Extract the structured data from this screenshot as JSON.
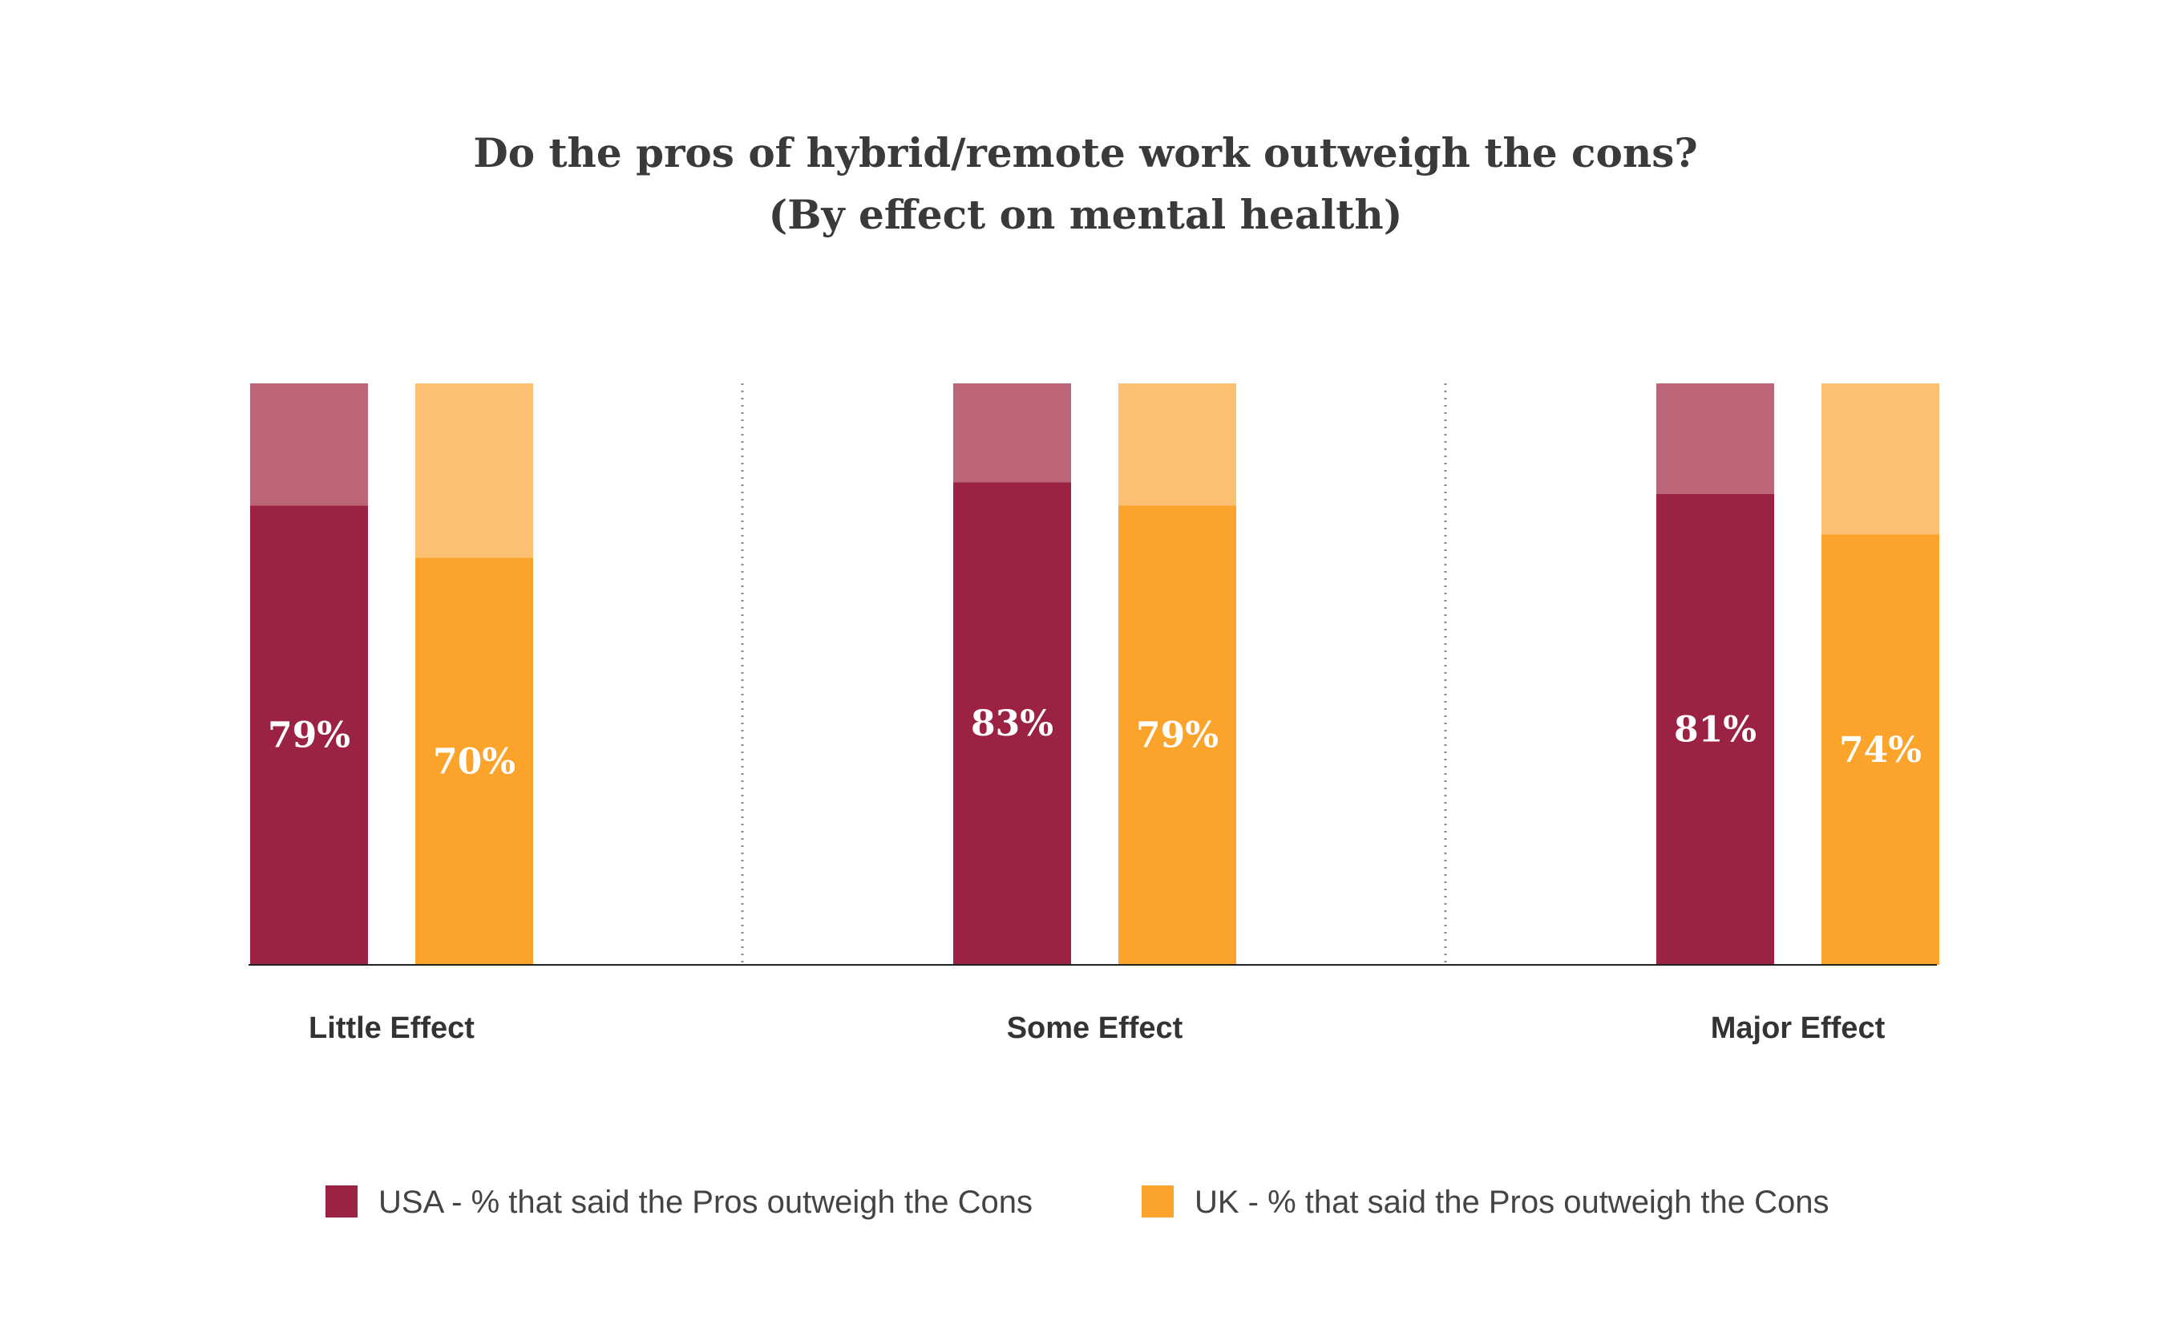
{
  "chart_data": {
    "type": "bar",
    "title": "Do the pros of hybrid/remote work outweigh the cons?",
    "subtitle": "(By effect on mental health)",
    "categories": [
      "Little Effect",
      "Some Effect",
      "Major Effect"
    ],
    "ylim": [
      0,
      100
    ],
    "grid": false,
    "legend_position": "bottom",
    "series": [
      {
        "name": "USA - % that said the Pros outweigh the Cons",
        "values": [
          79,
          83,
          81
        ],
        "labels": [
          "79%",
          "83%",
          "81%"
        ],
        "color": "#9b2242",
        "remainder_color": "#bb6577"
      },
      {
        "name": "UK - % that said the Pros outweigh the Cons",
        "values": [
          70,
          79,
          74
        ],
        "labels": [
          "70%",
          "79%",
          "74%"
        ],
        "color": "#fca32c",
        "remainder_color": "#fbc072"
      }
    ]
  }
}
